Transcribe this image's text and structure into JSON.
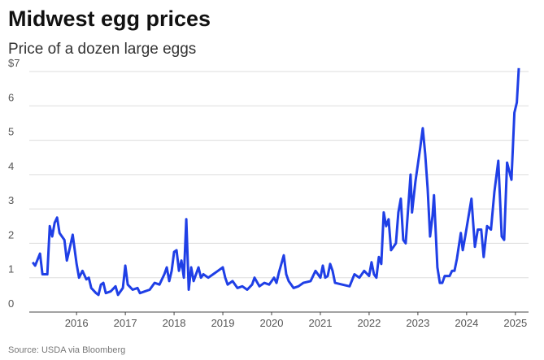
{
  "chart_data": {
    "type": "line",
    "title": "Midwest egg prices",
    "subtitle": "Price of a dozen large eggs",
    "source": "Source: USDA via Bloomberg",
    "xlim": [
      2015.03,
      2025.27
    ],
    "xticks": [
      2016,
      2017,
      2018,
      2019,
      2020,
      2021,
      2022,
      2023,
      2024,
      2025
    ],
    "ylim": [
      0,
      7
    ],
    "yticks": [
      0,
      1,
      2,
      3,
      4,
      5,
      6,
      {
        "value": 7,
        "label": "$7"
      }
    ],
    "grid": true,
    "series": [
      {
        "name": "Price",
        "color": "#1f3fe6",
        "x": [
          2015.1,
          2015.15,
          2015.25,
          2015.3,
          2015.4,
          2015.45,
          2015.5,
          2015.55,
          2015.6,
          2015.65,
          2015.75,
          2015.8,
          2015.85,
          2015.92,
          2016.0,
          2016.05,
          2016.12,
          2016.2,
          2016.25,
          2016.3,
          2016.4,
          2016.45,
          2016.5,
          2016.55,
          2016.6,
          2016.7,
          2016.8,
          2016.85,
          2016.95,
          2017.0,
          2017.05,
          2017.15,
          2017.25,
          2017.3,
          2017.4,
          2017.5,
          2017.6,
          2017.7,
          2017.8,
          2017.85,
          2017.9,
          2017.95,
          2018.0,
          2018.05,
          2018.1,
          2018.15,
          2018.2,
          2018.25,
          2018.3,
          2018.35,
          2018.4,
          2018.5,
          2018.55,
          2018.6,
          2018.7,
          2018.8,
          2018.9,
          2019.0,
          2019.05,
          2019.1,
          2019.2,
          2019.3,
          2019.4,
          2019.5,
          2019.6,
          2019.65,
          2019.75,
          2019.85,
          2019.95,
          2020.05,
          2020.1,
          2020.15,
          2020.25,
          2020.3,
          2020.35,
          2020.45,
          2020.55,
          2020.65,
          2020.8,
          2020.9,
          2021.0,
          2021.05,
          2021.1,
          2021.15,
          2021.2,
          2021.25,
          2021.3,
          2021.45,
          2021.6,
          2021.7,
          2021.8,
          2021.9,
          2022.0,
          2022.05,
          2022.1,
          2022.15,
          2022.2,
          2022.25,
          2022.3,
          2022.35,
          2022.4,
          2022.45,
          2022.5,
          2022.55,
          2022.6,
          2022.65,
          2022.7,
          2022.75,
          2022.8,
          2022.85,
          2022.88,
          2022.95,
          2023.0,
          2023.05,
          2023.1,
          2023.15,
          2023.2,
          2023.25,
          2023.3,
          2023.33,
          2023.4,
          2023.45,
          2023.5,
          2023.55,
          2023.65,
          2023.7,
          2023.75,
          2023.8,
          2023.88,
          2023.92,
          2023.97,
          2024.1,
          2024.17,
          2024.23,
          2024.3,
          2024.35,
          2024.42,
          2024.5,
          2024.57,
          2024.65,
          2024.72,
          2024.77,
          2024.83,
          2024.92,
          2024.98,
          2025.03,
          2025.07
        ],
        "values": [
          1.45,
          1.35,
          1.7,
          1.1,
          1.1,
          2.5,
          2.2,
          2.6,
          2.75,
          2.3,
          2.1,
          1.5,
          1.8,
          2.25,
          1.4,
          1.0,
          1.2,
          0.95,
          1.0,
          0.7,
          0.55,
          0.5,
          0.8,
          0.85,
          0.55,
          0.6,
          0.75,
          0.5,
          0.7,
          1.35,
          0.8,
          0.65,
          0.7,
          0.55,
          0.6,
          0.65,
          0.85,
          0.8,
          1.1,
          1.3,
          0.9,
          1.2,
          1.75,
          1.8,
          1.2,
          1.5,
          1.0,
          2.7,
          0.65,
          1.3,
          0.9,
          1.3,
          1.0,
          1.1,
          1.0,
          1.1,
          1.2,
          1.3,
          1.0,
          0.8,
          0.9,
          0.7,
          0.75,
          0.65,
          0.8,
          1.0,
          0.75,
          0.85,
          0.8,
          1.0,
          0.85,
          1.15,
          1.65,
          1.1,
          0.9,
          0.7,
          0.75,
          0.85,
          0.9,
          1.2,
          1.0,
          1.35,
          1.0,
          1.05,
          1.4,
          1.2,
          0.85,
          0.8,
          0.75,
          1.1,
          1.0,
          1.2,
          1.05,
          1.45,
          1.1,
          1.0,
          1.6,
          1.4,
          2.9,
          2.5,
          2.7,
          1.8,
          1.9,
          2.0,
          2.9,
          3.3,
          2.1,
          2.0,
          3.0,
          4.0,
          2.9,
          3.8,
          4.3,
          4.8,
          5.35,
          4.6,
          3.6,
          2.2,
          2.8,
          3.4,
          1.3,
          0.85,
          0.85,
          1.05,
          1.05,
          1.2,
          1.2,
          1.55,
          2.3,
          1.8,
          2.2,
          3.3,
          1.9,
          2.4,
          2.4,
          1.6,
          2.5,
          2.4,
          3.5,
          4.4,
          2.2,
          2.1,
          4.35,
          3.85,
          5.8,
          6.1,
          7.1
        ]
      }
    ]
  }
}
